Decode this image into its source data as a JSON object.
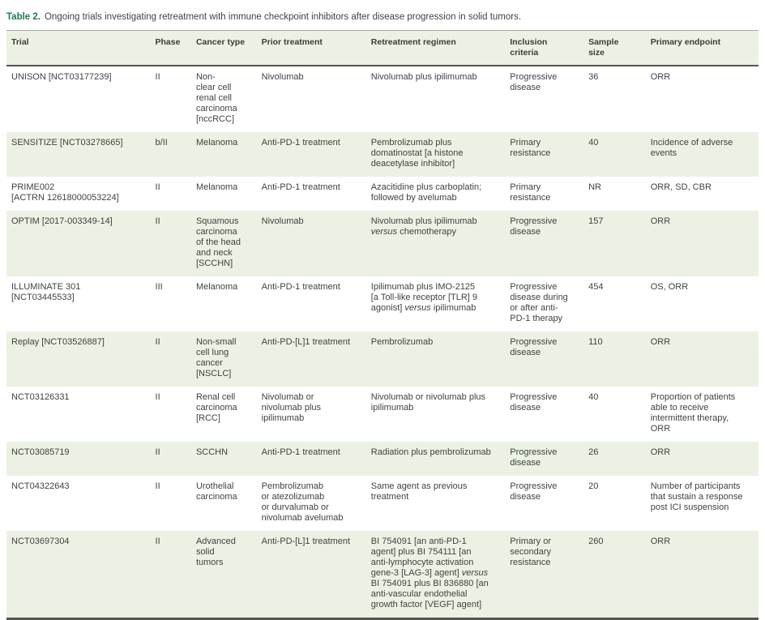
{
  "title": {
    "label": "Table 2.",
    "text": "Ongoing trials investigating retreatment with immune checkpoint inhibitors after disease progression in solid tumors."
  },
  "colors": {
    "accent_green": "#1c7a4f",
    "stripe": "#ebf2e3",
    "rule_dark": "#53564f",
    "rule_light": "#a7aba3",
    "text": "#3f4340"
  },
  "table": {
    "columns": [
      {
        "key": "trial",
        "label": "Trial"
      },
      {
        "key": "phase",
        "label": "Phase"
      },
      {
        "key": "cancer_type",
        "label": "Cancer type"
      },
      {
        "key": "prior_treatment",
        "label": "Prior treatment"
      },
      {
        "key": "regimen",
        "label": "Retreatment regimen"
      },
      {
        "key": "inclusion",
        "label": "Inclusion\ncriteria"
      },
      {
        "key": "sample",
        "label": "Sample\nsize"
      },
      {
        "key": "endpoint",
        "label": "Primary endpoint"
      }
    ],
    "rows": [
      {
        "trial": "UNISON [NCT03177239]",
        "phase": "II",
        "cancer_type": "Non-\nclear cell\nrenal cell\ncarcinoma\n[nccRCC]",
        "prior_treatment": "Nivolumab",
        "regimen": [
          {
            "text": "Nivolumab plus ipilimumab"
          }
        ],
        "inclusion": "Progressive\ndisease",
        "sample": "36",
        "endpoint": "ORR"
      },
      {
        "trial": "SENSITIZE [NCT03278665]",
        "phase": "b/II",
        "cancer_type": "Melanoma",
        "prior_treatment": "Anti-PD-1 treatment",
        "regimen": [
          {
            "text": "Pembrolizumab plus\ndomatinostat [a histone\ndeacetylase inhibitor]"
          }
        ],
        "inclusion": "Primary\nresistance",
        "sample": "40",
        "endpoint": "Incidence of adverse\nevents"
      },
      {
        "trial": "PRIME002\n[ACTRN 12618000053224]",
        "phase": "II",
        "cancer_type": "Melanoma",
        "prior_treatment": "Anti-PD-1 treatment",
        "regimen": [
          {
            "text": "Azacitidine plus carboplatin;\nfollowed by avelumab"
          }
        ],
        "inclusion": "Primary\nresistance",
        "sample": "NR",
        "endpoint": "ORR, SD, CBR"
      },
      {
        "trial": "OPTIM [2017-003349-14]",
        "phase": "II",
        "cancer_type": "Squamous\ncarcinoma\nof the head\nand neck\n[SCCHN]",
        "prior_treatment": "Nivolumab",
        "regimen": [
          {
            "text": "Nivolumab plus ipilimumab\n"
          },
          {
            "text": "versus",
            "italic": true
          },
          {
            "text": " chemotherapy"
          }
        ],
        "inclusion": "Progressive\ndisease",
        "sample": "157",
        "endpoint": "ORR"
      },
      {
        "trial": "ILLUMINATE 301\n[NCT03445533]",
        "phase": "III",
        "cancer_type": "Melanoma",
        "prior_treatment": "Anti-PD-1 treatment",
        "regimen": [
          {
            "text": "Ipilimumab plus IMO-2125\n[a Toll-like receptor [TLR] 9\nagonist] "
          },
          {
            "text": "versus",
            "italic": true
          },
          {
            "text": " ipilimumab"
          }
        ],
        "inclusion": "Progressive\ndisease during\nor after anti-\nPD-1 therapy",
        "sample": "454",
        "endpoint": "OS, ORR"
      },
      {
        "trial": "Replay [NCT03526887]",
        "phase": "II",
        "cancer_type": "Non-small\ncell lung\ncancer\n[NSCLC]",
        "prior_treatment": "Anti-PD-[L]1 treatment",
        "regimen": [
          {
            "text": "Pembrolizumab"
          }
        ],
        "inclusion": "Progressive\ndisease",
        "sample": "110",
        "endpoint": "ORR"
      },
      {
        "trial": "NCT03126331",
        "phase": "II",
        "cancer_type": "Renal cell\ncarcinoma\n[RCC]",
        "prior_treatment": "Nivolumab or\nnivolumab plus\nipilimumab",
        "regimen": [
          {
            "text": "Nivolumab or nivolumab plus\nipilimumab"
          }
        ],
        "inclusion": "Progressive\ndisease",
        "sample": "40",
        "endpoint": "Proportion of patients\nable to receive\nintermittent therapy,\nORR"
      },
      {
        "trial": "NCT03085719",
        "phase": "II",
        "cancer_type": "SCCHN",
        "prior_treatment": "Anti-PD-1 treatment",
        "regimen": [
          {
            "text": "Radiation plus pembrolizumab"
          }
        ],
        "inclusion": "Progressive\ndisease",
        "sample": "26",
        "endpoint": "ORR"
      },
      {
        "trial": "NCT04322643",
        "phase": "II",
        "cancer_type": "Urothelial\ncarcinoma",
        "prior_treatment": "Pembrolizumab\nor atezolizumab\nor durvalumab or\nnivolumab avelumab",
        "regimen": [
          {
            "text": "Same agent as previous\ntreatment"
          }
        ],
        "inclusion": "Progressive\ndisease",
        "sample": "20",
        "endpoint": "Number of participants\nthat sustain a response\npost ICI suspension"
      },
      {
        "trial": "NCT03697304",
        "phase": "II",
        "cancer_type": "Advanced\nsolid\ntumors",
        "prior_treatment": "Anti-PD-[L]1 treatment",
        "regimen": [
          {
            "text": "BI 754091 [an anti-PD-1\nagent] plus BI 754111 [an\nanti-lymphocyte activation\ngene-3 [LAG-3] agent] "
          },
          {
            "text": "versus",
            "italic": true
          },
          {
            "text": "\nBI 754091 plus BI 836880 [an\nanti-vascular endothelial\ngrowth factor [VEGF] agent]"
          }
        ],
        "inclusion": "Primary or\nsecondary\nresistance",
        "sample": "260",
        "endpoint": "ORR"
      }
    ]
  }
}
